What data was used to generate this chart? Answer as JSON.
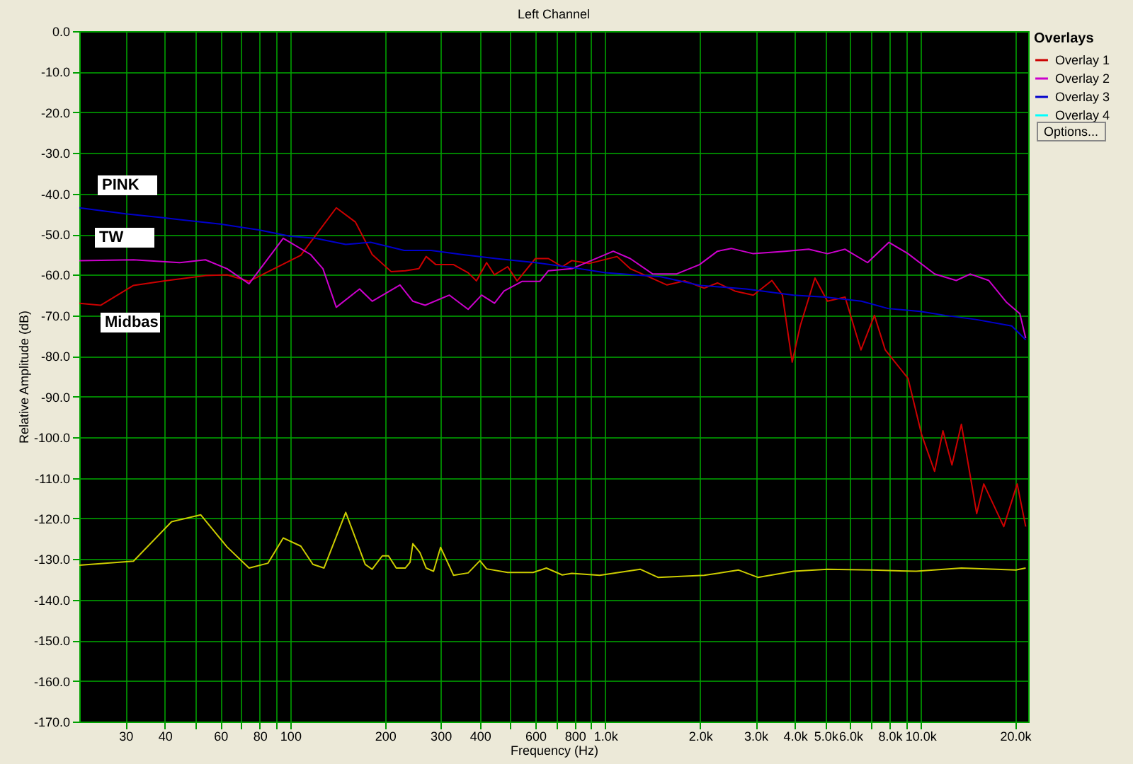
{
  "chart_data": {
    "type": "line",
    "title": "Left Channel",
    "xlabel": "Frequency (Hz)",
    "ylabel": "Relative Amplitude (dB)",
    "legend_title": "Overlays",
    "log": "x",
    "grid": true,
    "legend": "top right",
    "xlim": [
      21.4,
      22000
    ],
    "ylim": [
      -170,
      0
    ],
    "xticks": [
      {
        "value": 30,
        "label": "30"
      },
      {
        "value": 40,
        "label": "40"
      },
      {
        "value": 50,
        "label": null
      },
      {
        "value": 60,
        "label": "60"
      },
      {
        "value": 70,
        "label": null
      },
      {
        "value": 80,
        "label": "80"
      },
      {
        "value": 90,
        "label": null
      },
      {
        "value": 100,
        "label": "100"
      },
      {
        "value": 200,
        "label": "200"
      },
      {
        "value": 300,
        "label": "300"
      },
      {
        "value": 400,
        "label": "400"
      },
      {
        "value": 500,
        "label": null
      },
      {
        "value": 600,
        "label": "600"
      },
      {
        "value": 700,
        "label": null
      },
      {
        "value": 800,
        "label": "800"
      },
      {
        "value": 900,
        "label": null
      },
      {
        "value": 1000,
        "label": "1.0k"
      },
      {
        "value": 2000,
        "label": "2.0k"
      },
      {
        "value": 3000,
        "label": "3.0k"
      },
      {
        "value": 4000,
        "label": "4.0k"
      },
      {
        "value": 5000,
        "label": "5.0k"
      },
      {
        "value": 6000,
        "label": "6.0k"
      },
      {
        "value": 7000,
        "label": null
      },
      {
        "value": 8000,
        "label": "8.0k"
      },
      {
        "value": 9000,
        "label": null
      },
      {
        "value": 10000,
        "label": "10.0k"
      },
      {
        "value": 20000,
        "label": "20.0k"
      }
    ],
    "yticks": [
      {
        "value": 0,
        "label": "0.0"
      },
      {
        "value": -10,
        "label": "-10.0"
      },
      {
        "value": -20,
        "label": "-20.0"
      },
      {
        "value": -30,
        "label": "-30.0"
      },
      {
        "value": -40,
        "label": "-40.0"
      },
      {
        "value": -50,
        "label": "-50.0"
      },
      {
        "value": -60,
        "label": "-60.0"
      },
      {
        "value": -70,
        "label": "-70.0"
      },
      {
        "value": -80,
        "label": "-80.0"
      },
      {
        "value": -90,
        "label": "-90.0"
      },
      {
        "value": -100,
        "label": "-100.0"
      },
      {
        "value": -110,
        "label": "-110.0"
      },
      {
        "value": -120,
        "label": "-120.0"
      },
      {
        "value": -130,
        "label": "-130.0"
      },
      {
        "value": -140,
        "label": "-140.0"
      },
      {
        "value": -150,
        "label": "-150.0"
      },
      {
        "value": -160,
        "label": "-160.0"
      },
      {
        "value": -170,
        "label": "-170.0"
      }
    ],
    "series": [
      {
        "name": "Overlay 1",
        "color": "#cc0000",
        "x": [
          21.4,
          25,
          31.8,
          40,
          53.8,
          63,
          74,
          108,
          140,
          161,
          182,
          209,
          232,
          256,
          270,
          290,
          330,
          367,
          390,
          420,
          445,
          490,
          525,
          600,
          660,
          730,
          783,
          890,
          1090,
          1200,
          1375,
          1570,
          1790,
          2060,
          2270,
          2580,
          2950,
          3380,
          3650,
          3920,
          4160,
          4630,
          5070,
          5770,
          6480,
          7150,
          7740,
          9140,
          10100,
          11100,
          11800,
          12600,
          13500,
          15100,
          15900,
          18400,
          20300,
          21600
        ],
        "values": [
          -67,
          -67.5,
          -62.6,
          -61.5,
          -60.2,
          -60,
          -61.6,
          -55.2,
          -43.5,
          -47,
          -55,
          -59.2,
          -59,
          -58.5,
          -55.5,
          -57.5,
          -57.5,
          -59.5,
          -61.5,
          -57,
          -60,
          -58,
          -61.5,
          -56,
          -56,
          -58,
          -56.5,
          -57.2,
          -55.5,
          -58.5,
          -60.5,
          -62.5,
          -61.5,
          -63.3,
          -62,
          -64,
          -65,
          -61.4,
          -65,
          -81.5,
          -72.5,
          -60.8,
          -66.5,
          -65.5,
          -78.5,
          -70,
          -78.5,
          -85.5,
          -99.4,
          -108.4,
          -98.4,
          -106.8,
          -96.8,
          -118.8,
          -111.5,
          -122,
          -111.5,
          -122
        ]
      },
      {
        "name": "Overlay 2",
        "color": "#cc00cc",
        "x": [
          21.4,
          31.8,
          44.5,
          53.8,
          63,
          74,
          95,
          116,
          127,
          140,
          166,
          182,
          223,
          245,
          268,
          320,
          367,
          405,
          445,
          477,
          545,
          620,
          660,
          783,
          1060,
          1200,
          1415,
          1680,
          1990,
          2270,
          2510,
          2950,
          3720,
          4420,
          5070,
          5770,
          6800,
          7950,
          9140,
          11100,
          13000,
          14400,
          16500,
          18800,
          20700,
          21600
        ],
        "values": [
          -56.5,
          -56.3,
          -57,
          -56.3,
          -58.5,
          -62.2,
          -51,
          -55,
          -58.5,
          -68,
          -63.5,
          -66.5,
          -62.5,
          -66.5,
          -67.5,
          -65,
          -68.5,
          -65,
          -67,
          -64,
          -61.6,
          -61.6,
          -59,
          -58.5,
          -54.2,
          -56,
          -59.8,
          -59.8,
          -57.5,
          -54.2,
          -53.5,
          -54.8,
          -54.2,
          -53.7,
          -54.8,
          -53.7,
          -57,
          -52,
          -54.8,
          -59.8,
          -61.4,
          -59.8,
          -61.4,
          -66.8,
          -69.6,
          -75.6
        ]
      },
      {
        "name": "Overlay 3",
        "color": "#0000cc",
        "x": [
          21.4,
          30,
          40,
          60,
          80,
          100,
          120,
          150,
          180,
          230,
          280,
          350,
          450,
          600,
          783,
          1000,
          1500,
          2000,
          2800,
          3960,
          5000,
          6500,
          7900,
          10000,
          12000,
          15000,
          19500,
          21600
        ],
        "values": [
          -43.5,
          -45,
          -46,
          -47.5,
          -49,
          -50.5,
          -51,
          -52.5,
          -52,
          -54,
          -54,
          -55,
          -56,
          -57,
          -58.2,
          -59.5,
          -60.5,
          -62.6,
          -63.5,
          -65,
          -65.5,
          -66.5,
          -68.3,
          -69,
          -70,
          -71,
          -72.6,
          -76
        ]
      },
      {
        "name": "Overlay 4",
        "color": "#00ffff"
      },
      {
        "color": "#cccc00",
        "x": [
          21.4,
          31.8,
          42,
          52,
          63,
          74,
          85,
          95,
          108,
          118,
          128,
          150,
          173,
          182,
          196,
          205,
          217,
          232,
          240,
          245,
          258,
          270,
          285,
          300,
          318,
          330,
          367,
          400,
          420,
          490,
          590,
          650,
          730,
          783,
          960,
          1290,
          1470,
          2060,
          2650,
          3050,
          3960,
          5070,
          7000,
          9700,
          13500,
          20100,
          21600
        ],
        "values": [
          -131.5,
          -130.5,
          -120.8,
          -119.1,
          -127,
          -132.2,
          -131,
          -124.8,
          -126.8,
          -131.3,
          -132.2,
          -118.5,
          -131.3,
          -132.5,
          -129.2,
          -129.2,
          -132.2,
          -132.2,
          -130.8,
          -126.2,
          -128.4,
          -132.2,
          -133,
          -127.1,
          -131.3,
          -134,
          -133.4,
          -130.4,
          -132.4,
          -133.3,
          -133.3,
          -132.2,
          -133.9,
          -133.5,
          -134,
          -132.5,
          -134.5,
          -134,
          -132.7,
          -134.5,
          -133,
          -132.5,
          -132.7,
          -133,
          -132.2,
          -132.7,
          -132.2
        ]
      }
    ],
    "annotations": [
      "PINK",
      "TW",
      "Midbas",
      "Options..."
    ]
  }
}
